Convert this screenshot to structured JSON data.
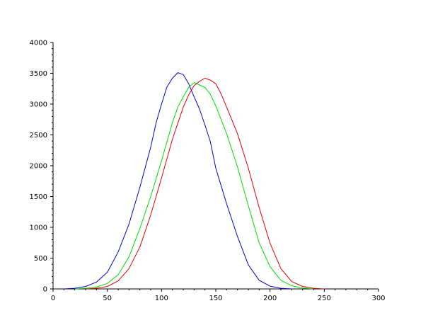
{
  "chart_data": {
    "type": "line",
    "title": "",
    "xlabel": "",
    "ylabel": "",
    "xlim": [
      0,
      300
    ],
    "ylim": [
      0,
      4000
    ],
    "x_ticks": [
      0,
      50,
      100,
      150,
      200,
      250,
      300
    ],
    "y_ticks": [
      0,
      500,
      1000,
      1500,
      2000,
      2500,
      3000,
      3500,
      4000
    ],
    "x_tick_labels": [
      "0",
      "50",
      "100",
      "150",
      "200",
      "250",
      "300"
    ],
    "y_tick_labels": [
      "0",
      "500",
      "1000",
      "1500",
      "2000",
      "2500",
      "3000",
      "3500",
      "4000"
    ],
    "grid": false,
    "legend": "none",
    "series": [
      {
        "color": "#0000cc",
        "x": [
          10,
          20,
          30,
          40,
          50,
          60,
          70,
          80,
          90,
          95,
          100,
          105,
          110,
          115,
          120,
          125,
          130,
          135,
          140,
          145,
          150,
          160,
          170,
          180,
          190,
          200,
          210,
          220
        ],
        "y": [
          0,
          10,
          40,
          110,
          270,
          600,
          1050,
          1650,
          2300,
          2700,
          3000,
          3280,
          3420,
          3510,
          3480,
          3330,
          3120,
          2920,
          2660,
          2390,
          1960,
          1380,
          850,
          390,
          140,
          45,
          10,
          0
        ]
      },
      {
        "color": "#00dd00",
        "x": [
          20,
          30,
          40,
          50,
          60,
          70,
          80,
          90,
          100,
          110,
          115,
          120,
          125,
          130,
          135,
          140,
          145,
          150,
          160,
          170,
          180,
          190,
          200,
          210,
          220,
          230,
          240
        ],
        "y": [
          0,
          10,
          30,
          90,
          230,
          520,
          980,
          1500,
          2080,
          2700,
          2950,
          3120,
          3270,
          3350,
          3310,
          3270,
          3160,
          2970,
          2520,
          1980,
          1350,
          750,
          360,
          140,
          50,
          15,
          0
        ]
      },
      {
        "color": "#dd0000",
        "x": [
          30,
          40,
          50,
          60,
          70,
          80,
          90,
          100,
          110,
          120,
          125,
          130,
          135,
          140,
          145,
          150,
          155,
          160,
          170,
          180,
          190,
          200,
          210,
          220,
          230,
          240,
          250
        ],
        "y": [
          0,
          10,
          40,
          130,
          330,
          680,
          1200,
          1800,
          2430,
          2950,
          3150,
          3300,
          3370,
          3420,
          3390,
          3330,
          3160,
          2950,
          2520,
          1960,
          1320,
          740,
          330,
          120,
          40,
          10,
          0
        ]
      }
    ]
  }
}
